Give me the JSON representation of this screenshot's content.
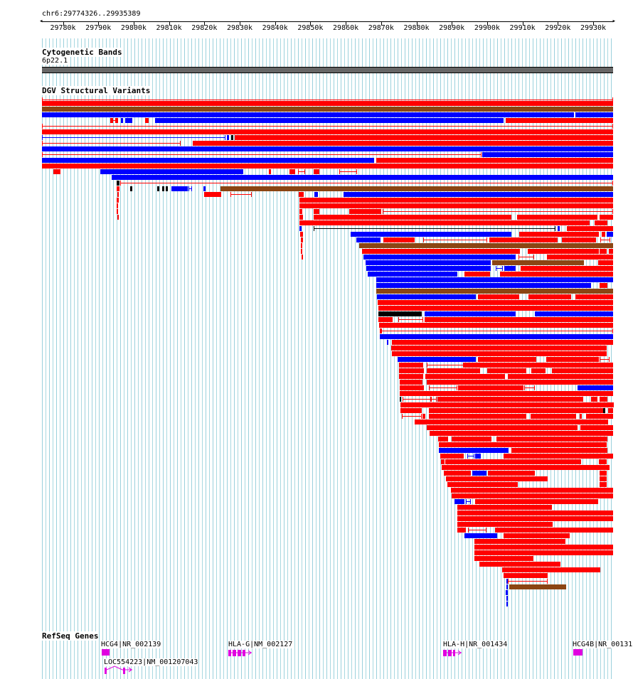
{
  "coords": "chr6:29774326..29935389",
  "ruler": {
    "ticks": [
      "29780k",
      "29790k",
      "29800k",
      "29810k",
      "29820k",
      "29830k",
      "29840k",
      "29850k",
      "29860k",
      "29870k",
      "29880k",
      "29890k",
      "29900k",
      "29910k",
      "29920k",
      "29930k"
    ]
  },
  "cyto": {
    "title": "Cytogenetic Bands",
    "band": "6p22.1"
  },
  "dgv": {
    "title": "DGV Structural Variants"
  },
  "colors": {
    "loss": "#ff0000",
    "gain": "#0000ff",
    "both": "#8b4513",
    "other": "#000000",
    "gene": "#e000e0"
  },
  "refseq": {
    "title": "RefSeq Genes",
    "genes": [
      {
        "label": "HCG4|NR_002139"
      },
      {
        "label": "LOC554223|NM_001207043"
      },
      {
        "label": "HLA-G|NM_002127"
      },
      {
        "label": "HLA-H|NR_001434"
      },
      {
        "label": "HCG4B|NR_00131"
      }
    ]
  }
}
